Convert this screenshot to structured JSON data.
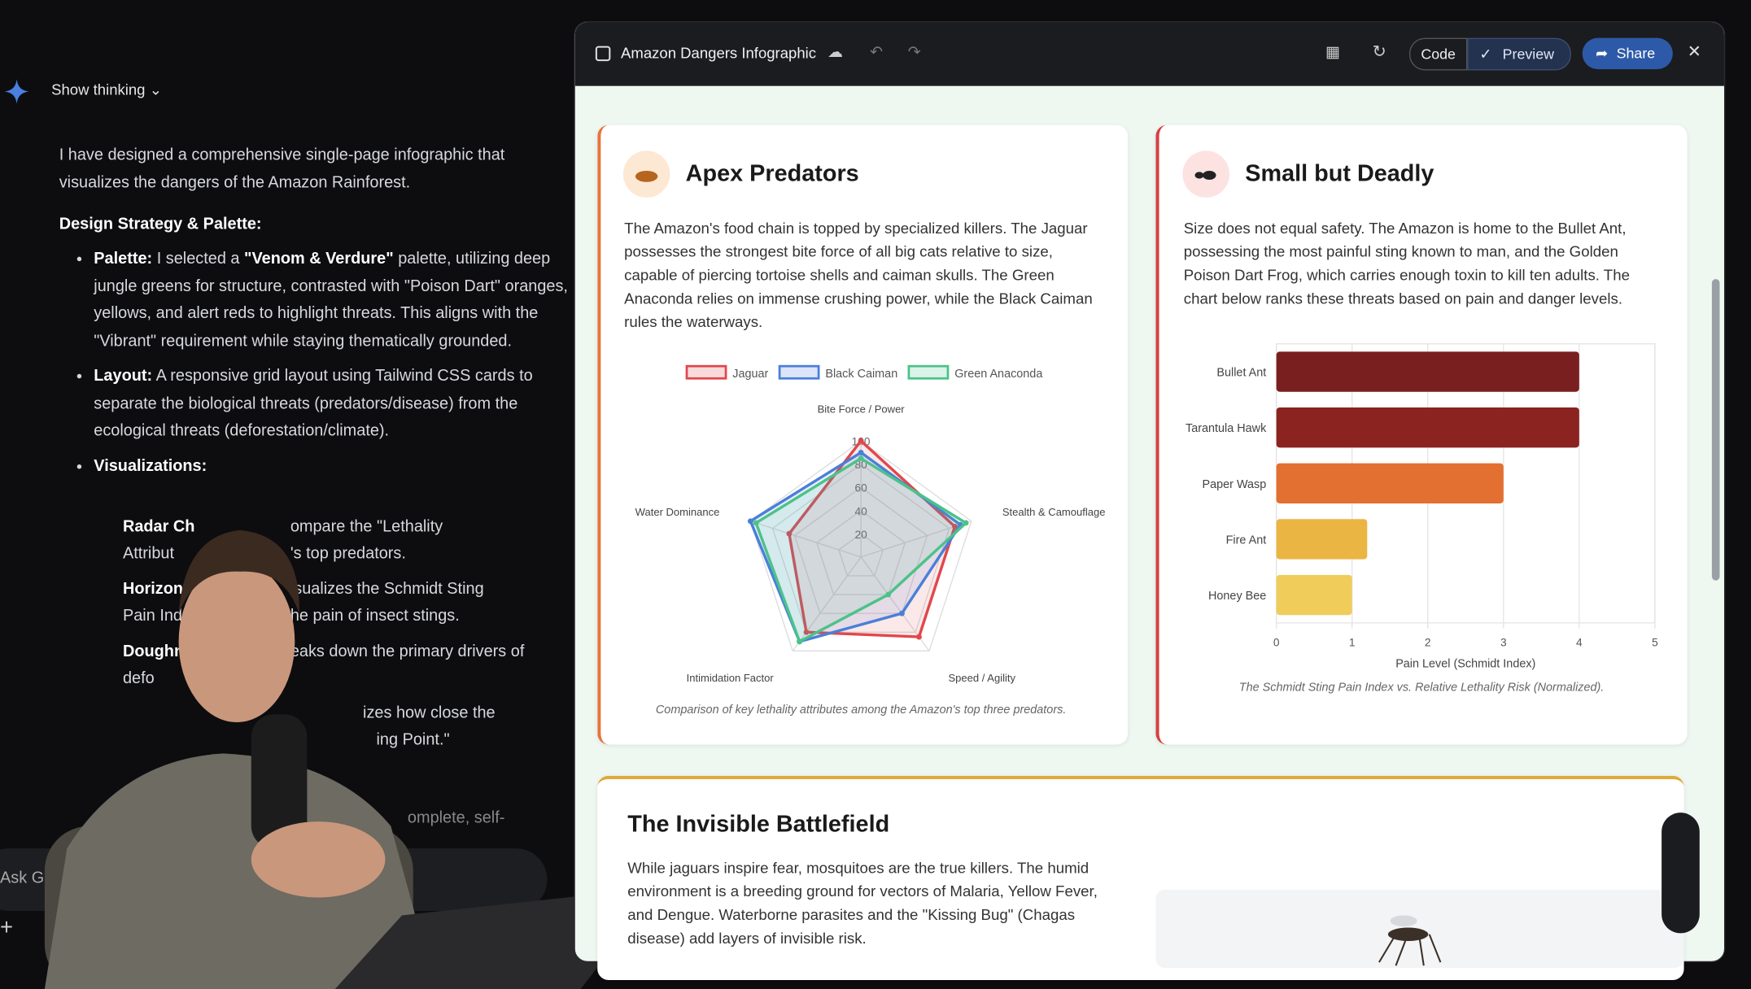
{
  "chat": {
    "show_thinking": "Show thinking",
    "intro": "I have designed a comprehensive single-page infographic that visualizes the dangers of the Amazon Rainforest.",
    "heading": "Design Strategy & Palette:",
    "bullet1": [
      "Palette:",
      " I selected a ",
      "\"Venom & Verdure\"",
      " palette, utilizing deep jungle greens for structure, contrasted with \"Poison Dart\" oranges, yellows, and alert reds to highlight threats. This aligns with the \"Vibrant\" requirement while staying thematically grounded."
    ],
    "bullet2": [
      "Layout:",
      " A responsive grid layout using Tailwind CSS cards to separate the biological threats (predators/disease) from the ecological threats (deforestation/climate)."
    ],
    "bullet3": "Visualizations:",
    "fragments": [
      "Radar Ch",
      "ompare the \"Lethality",
      "Attribut",
      "'s top predators.",
      "Horizon",
      "isualizes the Schmidt Sting",
      "Pain Inde",
      "he pain of insect stings.",
      "Doughnu",
      "eaks down the primary drivers of",
      "defo",
      "izes how close the",
      "ing Point.\"",
      "omplete, self-"
    ],
    "input": "Ask Ge"
  },
  "toolbar": {
    "title": "Amazon Dangers Infographic",
    "code": "Code",
    "preview": "Preview",
    "share": "Share"
  },
  "cards": [
    {
      "title": "Apex Predators",
      "body": "The Amazon's food chain is topped by specialized killers. The Jaguar possesses the strongest bite force of all big cats relative to size, capable of piercing tortoise shells and caiman skulls. The Green Anaconda relies on immense crushing power, while the Black Caiman rules the waterways.",
      "caption": "Comparison of key lethality attributes among the Amazon's top three predators."
    },
    {
      "title": "Small but Deadly",
      "body": "Size does not equal safety. The Amazon is home to the Bullet Ant, possessing the most painful sting known to man, and the Golden Poison Dart Frog, which carries enough toxin to kill ten adults. The chart below ranks these threats based on pain and danger levels.",
      "caption": "The Schmidt Sting Pain Index vs. Relative Lethality Risk (Normalized)."
    },
    {
      "title": "The Invisible Battlefield",
      "body": "While jaguars inspire fear, mosquitoes are the true killers. The humid environment is a breeding ground for vectors of Malaria, Yellow Fever, and Dengue. Waterborne parasites and the \"Kissing Bug\" (Chagas disease) add layers of invisible risk."
    }
  ],
  "chart_data": [
    {
      "type": "radar",
      "categories": [
        "Bite Force / Power",
        "Stealth & Camouflage",
        "Speed / Agility",
        "Intimidation Factor",
        "Water Dominance"
      ],
      "series": [
        {
          "name": "Jaguar",
          "color": "#e0474c",
          "values": [
            100,
            85,
            85,
            80,
            65
          ]
        },
        {
          "name": "Black Caiman",
          "color": "#4a7fd9",
          "values": [
            90,
            90,
            60,
            90,
            100
          ]
        },
        {
          "name": "Green Anaconda",
          "color": "#4cc28a",
          "values": [
            85,
            95,
            40,
            90,
            95
          ]
        }
      ],
      "ylim": [
        0,
        100
      ],
      "yticks": [
        20,
        40,
        60,
        80,
        100
      ],
      "legend": "top"
    },
    {
      "type": "hbar",
      "categories": [
        "Bullet Ant",
        "Tarantula Hawk",
        "Paper Wasp",
        "Fire Ant",
        "Honey Bee"
      ],
      "values": [
        4,
        4,
        3,
        1.2,
        1
      ],
      "colors": [
        "#7a1f1f",
        "#8b2320",
        "#e36f30",
        "#eab543",
        "#f0cc5a"
      ],
      "xlabel": "Pain Level (Schmidt Index)",
      "xlim": [
        0,
        5
      ],
      "xticks": [
        0,
        1,
        2,
        3,
        4,
        5
      ],
      "grid": true
    }
  ]
}
